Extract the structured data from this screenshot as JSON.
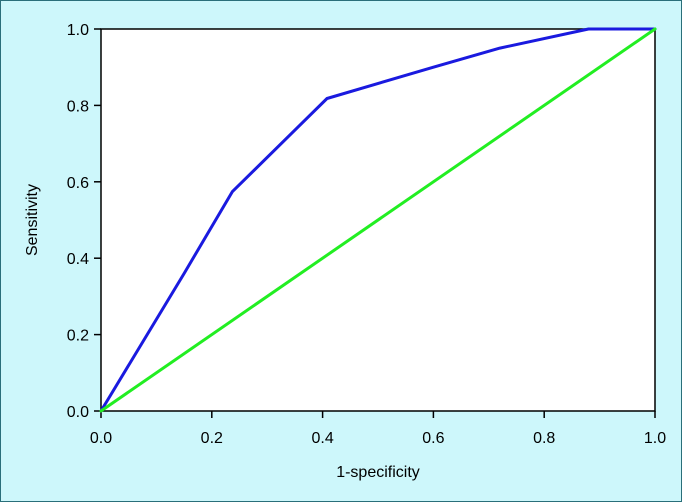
{
  "chart_data": {
    "type": "line",
    "title": "",
    "xlabel": "1-specificity",
    "ylabel": "Sensitivity",
    "xlim": [
      0,
      1
    ],
    "ylim": [
      0,
      1
    ],
    "x_ticks": [
      "0.0",
      "0.2",
      "0.4",
      "0.6",
      "0.8",
      "1.0"
    ],
    "y_ticks": [
      "0.0",
      "0.2",
      "0.4",
      "0.6",
      "0.8",
      "1.0"
    ],
    "grid": false,
    "legend": "none",
    "series": [
      {
        "color": "#1a1adf",
        "points": [
          [
            0.0,
            0.0
          ],
          [
            0.15,
            0.36
          ],
          [
            0.237,
            0.574
          ],
          [
            0.408,
            0.818
          ],
          [
            0.6,
            0.9
          ],
          [
            0.72,
            0.95
          ],
          [
            0.88,
            1.0
          ],
          [
            1.0,
            1.0
          ]
        ]
      },
      {
        "color": "#22ee22",
        "points": [
          [
            0.0,
            0.0
          ],
          [
            1.0,
            1.0
          ]
        ]
      }
    ]
  }
}
